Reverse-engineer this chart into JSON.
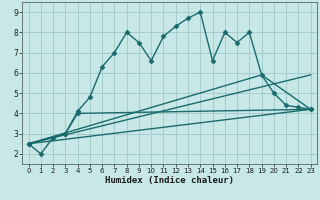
{
  "title": "",
  "xlabel": "Humidex (Indice chaleur)",
  "xlim": [
    -0.5,
    23.5
  ],
  "ylim": [
    1.5,
    9.5
  ],
  "yticks": [
    2,
    3,
    4,
    5,
    6,
    7,
    8,
    9
  ],
  "xticks": [
    0,
    1,
    2,
    3,
    4,
    5,
    6,
    7,
    8,
    9,
    10,
    11,
    12,
    13,
    14,
    15,
    16,
    17,
    18,
    19,
    20,
    21,
    22,
    23
  ],
  "bg_color": "#c8e8e8",
  "grid_color": "#a0c8c8",
  "line_color": "#1a6b6b",
  "series": [
    {
      "x": [
        0,
        1,
        2,
        3,
        4,
        5,
        6,
        7,
        8,
        9,
        10,
        11,
        12,
        13,
        14,
        15,
        16,
        17,
        18,
        19,
        20,
        21,
        22,
        23
      ],
      "y": [
        2.5,
        2.0,
        2.8,
        3.0,
        4.1,
        4.8,
        6.3,
        7.0,
        8.0,
        7.5,
        6.6,
        7.8,
        8.3,
        8.7,
        9.0,
        6.6,
        8.0,
        7.5,
        8.0,
        5.9,
        5.0,
        4.4,
        4.3,
        4.2
      ],
      "marker": "D",
      "markersize": 2.5,
      "linewidth": 1.0
    },
    {
      "x": [
        0,
        3,
        4,
        23
      ],
      "y": [
        2.5,
        3.0,
        4.0,
        4.2
      ],
      "marker": "D",
      "markersize": 2.5,
      "linewidth": 1.0
    },
    {
      "x": [
        0,
        23
      ],
      "y": [
        2.5,
        5.9
      ],
      "marker": null,
      "markersize": 0,
      "linewidth": 1.0
    },
    {
      "x": [
        0,
        19,
        23
      ],
      "y": [
        2.5,
        5.9,
        4.2
      ],
      "marker": null,
      "markersize": 0,
      "linewidth": 1.0
    },
    {
      "x": [
        0,
        23
      ],
      "y": [
        2.5,
        4.2
      ],
      "marker": null,
      "markersize": 0,
      "linewidth": 1.0
    }
  ]
}
